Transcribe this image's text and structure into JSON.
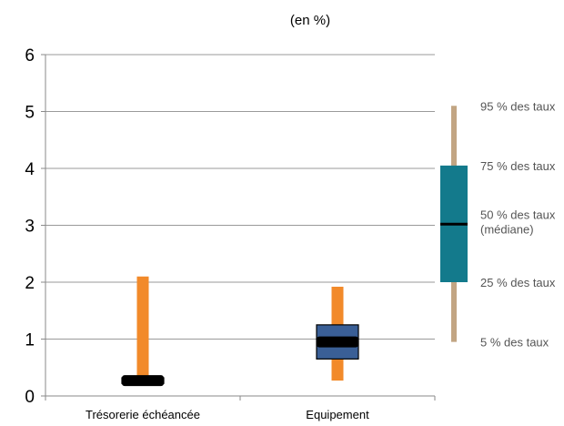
{
  "chart_data": {
    "type": "boxplot",
    "subtitle": "(en %)",
    "ylim": [
      0,
      6
    ],
    "yticks": [
      0,
      1,
      2,
      3,
      4,
      5,
      6
    ],
    "grid": true,
    "categories": [
      "Trésorerie échéancée",
      "Equipement"
    ],
    "series": [
      {
        "category": "Trésorerie échéancée",
        "p5": 0.25,
        "p25": 0.22,
        "median": 0.27,
        "p75": 0.32,
        "p95": 2.1
      },
      {
        "category": "Equipement",
        "p5": 0.27,
        "p25": 0.65,
        "median": 0.95,
        "p75": 1.25,
        "p95": 1.92
      }
    ],
    "legend": {
      "position": "right",
      "p95": "95 % des taux",
      "p75": "75 % des taux",
      "median": "50 % des taux",
      "median_note": "(médiane)",
      "p25": "25 % des taux",
      "p5": "5 % des taux",
      "example": {
        "p5": 0.95,
        "p25": 2.0,
        "median": 3.02,
        "p75": 4.05,
        "p95": 5.1
      }
    },
    "colors": {
      "whisker": "#f28a2a",
      "box_fill": "#3a5f96",
      "median": "#000000",
      "grid": "#9a9a9a",
      "subtitle": "#3a73b0",
      "legend_box": "#137a8c",
      "legend_whisker": "#c2a583"
    }
  }
}
